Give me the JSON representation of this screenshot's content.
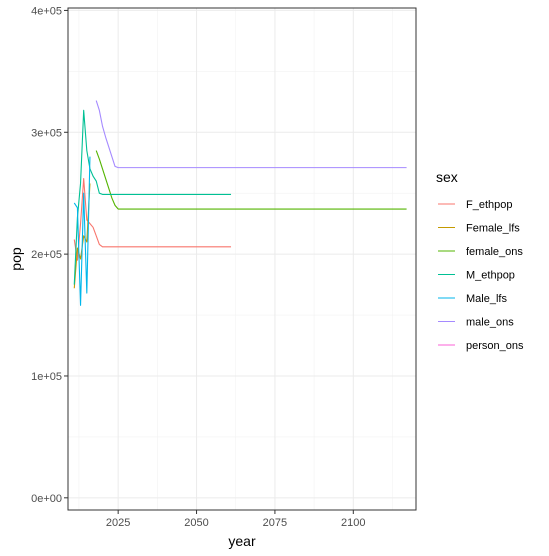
{
  "chart_data": {
    "type": "line",
    "title": "",
    "xlabel": "year",
    "ylabel": "pop",
    "xlim": [
      2009,
      2120
    ],
    "ylim": [
      -10000,
      402000
    ],
    "x_ticks": [
      2025,
      2050,
      2075,
      2100
    ],
    "x_tick_labels": [
      "2025",
      "2050",
      "2075",
      "2100"
    ],
    "y_ticks": [
      0,
      100000,
      200000,
      300000,
      400000
    ],
    "y_tick_labels": [
      "0e+00",
      "1e+05",
      "2e+05",
      "3e+05",
      "4e+05"
    ],
    "grid": true,
    "legend_title": "sex",
    "legend_position": "right",
    "series": [
      {
        "name": "F_ethpop",
        "color": "#F8766D",
        "x": [
          2011,
          2012,
          2013,
          2014,
          2015,
          2016,
          2017,
          2018,
          2019,
          2020,
          2030,
          2040,
          2050,
          2061
        ],
        "y": [
          212000,
          195000,
          225000,
          262000,
          228000,
          225000,
          222000,
          215000,
          208000,
          206000,
          206000,
          206000,
          206000,
          206000
        ]
      },
      {
        "name": "Female_lfs",
        "color": "#C49A00",
        "x": [
          2011,
          2012,
          2013,
          2014,
          2015,
          2016
        ],
        "y": [
          172000,
          205000,
          196000,
          215000,
          210000,
          258000
        ]
      },
      {
        "name": "female_ons",
        "color": "#53B400",
        "x": [
          2018,
          2019,
          2020,
          2021,
          2022,
          2023,
          2024,
          2025,
          2040,
          2060,
          2080,
          2100,
          2117
        ],
        "y": [
          285000,
          278000,
          270000,
          262000,
          254000,
          246000,
          240000,
          237000,
          237000,
          237000,
          237000,
          237000,
          237000
        ]
      },
      {
        "name": "M_ethpop",
        "color": "#00C094",
        "x": [
          2011,
          2012,
          2013,
          2014,
          2015,
          2016,
          2017,
          2018,
          2019,
          2020,
          2030,
          2040,
          2050,
          2061
        ],
        "y": [
          175000,
          230000,
          258000,
          318000,
          285000,
          270000,
          264000,
          260000,
          250000,
          249000,
          249000,
          249000,
          249000,
          249000
        ]
      },
      {
        "name": "Male_lfs",
        "color": "#00B6EB",
        "x": [
          2011,
          2012,
          2013,
          2014,
          2015,
          2016
        ],
        "y": [
          242000,
          238000,
          158000,
          250000,
          168000,
          280000
        ]
      },
      {
        "name": "male_ons",
        "color": "#A58AFF",
        "x": [
          2018,
          2019,
          2020,
          2021,
          2022,
          2023,
          2024,
          2025,
          2040,
          2060,
          2080,
          2100,
          2117
        ],
        "y": [
          326000,
          318000,
          305000,
          296000,
          288000,
          280000,
          272000,
          271000,
          271000,
          271000,
          271000,
          271000,
          271000
        ]
      },
      {
        "name": "person_ons",
        "color": "#FB61D7",
        "x": [],
        "y": []
      }
    ]
  }
}
